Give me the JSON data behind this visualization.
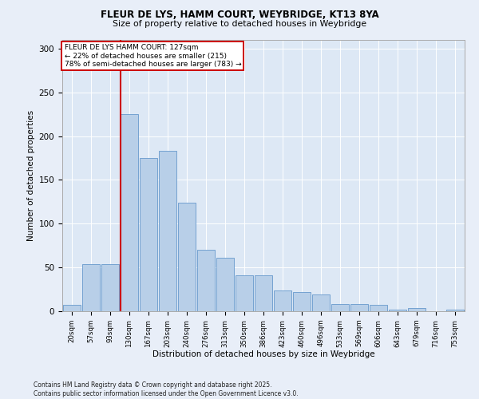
{
  "title_line1": "FLEUR DE LYS, HAMM COURT, WEYBRIDGE, KT13 8YA",
  "title_line2": "Size of property relative to detached houses in Weybridge",
  "xlabel": "Distribution of detached houses by size in Weybridge",
  "ylabel": "Number of detached properties",
  "categories": [
    "20sqm",
    "57sqm",
    "93sqm",
    "130sqm",
    "167sqm",
    "203sqm",
    "240sqm",
    "276sqm",
    "313sqm",
    "350sqm",
    "386sqm",
    "423sqm",
    "460sqm",
    "496sqm",
    "533sqm",
    "569sqm",
    "606sqm",
    "643sqm",
    "679sqm",
    "716sqm",
    "753sqm"
  ],
  "values": [
    7,
    54,
    54,
    225,
    175,
    183,
    124,
    70,
    61,
    41,
    41,
    24,
    22,
    19,
    8,
    8,
    7,
    2,
    4,
    0,
    2
  ],
  "bar_color": "#b8cfe8",
  "bar_edgecolor": "#6699cc",
  "vline_color": "#cc0000",
  "annotation_text": "FLEUR DE LYS HAMM COURT: 127sqm\n← 22% of detached houses are smaller (215)\n78% of semi-detached houses are larger (783) →",
  "annotation_box_edgecolor": "#cc0000",
  "annotation_box_facecolor": "#ffffff",
  "ylim": [
    0,
    310
  ],
  "yticks": [
    0,
    50,
    100,
    150,
    200,
    250,
    300
  ],
  "background_color": "#dde8f5",
  "fig_facecolor": "#e8eef8",
  "footer_line1": "Contains HM Land Registry data © Crown copyright and database right 2025.",
  "footer_line2": "Contains public sector information licensed under the Open Government Licence v3.0."
}
